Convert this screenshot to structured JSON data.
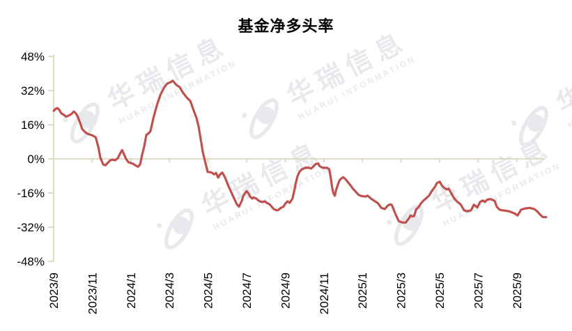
{
  "page": {
    "background": "#FFFFFF"
  },
  "chart_data": {
    "type": "line",
    "title": "基金净多头率",
    "series_name": "基金净多头率",
    "unit": "%",
    "legend_position": "none",
    "grid": "zero-line-only",
    "line_color": "#C0504D",
    "axis_color": "#D9D2B6",
    "label_color": "#000000",
    "x_axis": {
      "tick_labels": [
        "2023/9",
        "2023/11",
        "2024/1",
        "2024/3",
        "2024/5",
        "2024/7",
        "2024/9",
        "2024/11",
        "2025/1",
        "2025/3",
        "2025/5",
        "2025/7",
        "2025/9"
      ],
      "tick_years_decimal": [
        2023.6667,
        2023.8333,
        2024.0,
        2024.1667,
        2024.3333,
        2024.5,
        2024.6667,
        2024.8333,
        2025.0,
        2025.1667,
        2025.3333,
        2025.5,
        2025.6667
      ],
      "start_year_decimal": 2023.6667,
      "end_year_decimal": 2025.8,
      "tick_interval_months": 2,
      "label_rotation_deg": -90
    },
    "y_axis": {
      "tick_labels": [
        "48%",
        "32%",
        "16%",
        "0%",
        "-16%",
        "-32%",
        "-48%"
      ],
      "tick_values": [
        48,
        32,
        16,
        0,
        -16,
        -32,
        -48
      ],
      "min": -48,
      "max": 48
    },
    "points": [
      [
        2023.667,
        22.5
      ],
      [
        2023.676,
        23.5
      ],
      [
        2023.682,
        23.8
      ],
      [
        2023.691,
        23.0
      ],
      [
        2023.7,
        21.3
      ],
      [
        2023.712,
        20.5
      ],
      [
        2023.721,
        19.8
      ],
      [
        2023.73,
        20.2
      ],
      [
        2023.742,
        20.9
      ],
      [
        2023.754,
        22.2
      ],
      [
        2023.763,
        21.3
      ],
      [
        2023.772,
        19.5
      ],
      [
        2023.784,
        15.9
      ],
      [
        2023.79,
        14.0
      ],
      [
        2023.802,
        12.6
      ],
      [
        2023.811,
        11.9
      ],
      [
        2023.82,
        11.5
      ],
      [
        2023.832,
        11.1
      ],
      [
        2023.848,
        10.2
      ],
      [
        2023.86,
        5.3
      ],
      [
        2023.869,
        0.4
      ],
      [
        2023.881,
        -2.6
      ],
      [
        2023.89,
        -3.0
      ],
      [
        2023.899,
        -2.0
      ],
      [
        2023.911,
        -0.7
      ],
      [
        2023.92,
        -0.4
      ],
      [
        2023.932,
        -0.7
      ],
      [
        2023.944,
        0.4
      ],
      [
        2023.953,
        2.4
      ],
      [
        2023.962,
        4.1
      ],
      [
        2023.971,
        2.1
      ],
      [
        2023.98,
        -0.1
      ],
      [
        2023.989,
        -1.5
      ],
      [
        2024.001,
        -2.0
      ],
      [
        2024.01,
        -2.3
      ],
      [
        2024.019,
        -3.0
      ],
      [
        2024.031,
        -3.7
      ],
      [
        2024.04,
        -2.6
      ],
      [
        2024.049,
        2.1
      ],
      [
        2024.058,
        6.0
      ],
      [
        2024.067,
        11.3
      ],
      [
        2024.076,
        11.9
      ],
      [
        2024.085,
        13.0
      ],
      [
        2024.097,
        18.9
      ],
      [
        2024.112,
        24.9
      ],
      [
        2024.127,
        29.8
      ],
      [
        2024.142,
        33.1
      ],
      [
        2024.157,
        35.3
      ],
      [
        2024.169,
        35.8
      ],
      [
        2024.181,
        36.6
      ],
      [
        2024.196,
        34.7
      ],
      [
        2024.211,
        33.6
      ],
      [
        2024.226,
        30.9
      ],
      [
        2024.242,
        28.7
      ],
      [
        2024.257,
        27.1
      ],
      [
        2024.272,
        22.5
      ],
      [
        2024.284,
        19.0
      ],
      [
        2024.293,
        15.0
      ],
      [
        2024.302,
        9.0
      ],
      [
        2024.311,
        3.0
      ],
      [
        2024.32,
        -1.0
      ],
      [
        2024.332,
        -6.1
      ],
      [
        2024.347,
        -6.3
      ],
      [
        2024.359,
        -7.2
      ],
      [
        2024.368,
        -6.6
      ],
      [
        2024.377,
        -8.8
      ],
      [
        2024.386,
        -7.2
      ],
      [
        2024.395,
        -6.4
      ],
      [
        2024.407,
        -8.8
      ],
      [
        2024.419,
        -12.1
      ],
      [
        2024.428,
        -14.3
      ],
      [
        2024.437,
        -16.4
      ],
      [
        2024.449,
        -19.2
      ],
      [
        2024.458,
        -21.3
      ],
      [
        2024.467,
        -22.4
      ],
      [
        2024.479,
        -19.7
      ],
      [
        2024.485,
        -17.5
      ],
      [
        2024.494,
        -15.9
      ],
      [
        2024.5,
        -15.1
      ],
      [
        2024.509,
        -16.4
      ],
      [
        2024.515,
        -17.7
      ],
      [
        2024.524,
        -18.6
      ],
      [
        2024.53,
        -18.1
      ],
      [
        2024.539,
        -18.4
      ],
      [
        2024.548,
        -19.2
      ],
      [
        2024.557,
        -19.9
      ],
      [
        2024.569,
        -20.2
      ],
      [
        2024.578,
        -19.9
      ],
      [
        2024.587,
        -20.6
      ],
      [
        2024.599,
        -21.3
      ],
      [
        2024.608,
        -22.4
      ],
      [
        2024.617,
        -23.5
      ],
      [
        2024.629,
        -24.1
      ],
      [
        2024.638,
        -23.9
      ],
      [
        2024.647,
        -23.0
      ],
      [
        2024.659,
        -22.4
      ],
      [
        2024.668,
        -20.8
      ],
      [
        2024.677,
        -19.9
      ],
      [
        2024.686,
        -20.6
      ],
      [
        2024.698,
        -18.6
      ],
      [
        2024.707,
        -14.3
      ],
      [
        2024.713,
        -11.0
      ],
      [
        2024.719,
        -8.3
      ],
      [
        2024.728,
        -6.1
      ],
      [
        2024.737,
        -5.0
      ],
      [
        2024.752,
        -4.2
      ],
      [
        2024.767,
        -4.1
      ],
      [
        2024.779,
        -4.5
      ],
      [
        2024.788,
        -3.6
      ],
      [
        2024.797,
        -2.5
      ],
      [
        2024.809,
        -2.1
      ],
      [
        2024.815,
        -3.4
      ],
      [
        2024.827,
        -4.1
      ],
      [
        2024.839,
        -4.2
      ],
      [
        2024.848,
        -4.2
      ],
      [
        2024.857,
        -5.0
      ],
      [
        2024.863,
        -8.8
      ],
      [
        2024.869,
        -13.2
      ],
      [
        2024.875,
        -16.2
      ],
      [
        2024.881,
        -17.3
      ],
      [
        2024.887,
        -14.3
      ],
      [
        2024.896,
        -11.5
      ],
      [
        2024.902,
        -9.9
      ],
      [
        2024.911,
        -9.0
      ],
      [
        2024.917,
        -8.6
      ],
      [
        2024.926,
        -9.4
      ],
      [
        2024.938,
        -11.0
      ],
      [
        2024.95,
        -12.6
      ],
      [
        2024.959,
        -14.0
      ],
      [
        2024.971,
        -15.3
      ],
      [
        2024.983,
        -16.8
      ],
      [
        2024.992,
        -17.3
      ],
      [
        2025.004,
        -17.5
      ],
      [
        2025.013,
        -17.7
      ],
      [
        2025.022,
        -17.2
      ],
      [
        2025.037,
        -18.6
      ],
      [
        2025.052,
        -19.7
      ],
      [
        2025.067,
        -20.8
      ],
      [
        2025.082,
        -23.0
      ],
      [
        2025.097,
        -23.5
      ],
      [
        2025.109,
        -21.9
      ],
      [
        2025.121,
        -21.3
      ],
      [
        2025.127,
        -21.6
      ],
      [
        2025.142,
        -25.7
      ],
      [
        2025.157,
        -29.2
      ],
      [
        2025.172,
        -29.8
      ],
      [
        2025.187,
        -29.8
      ],
      [
        2025.202,
        -27.7
      ],
      [
        2025.208,
        -26.5
      ],
      [
        2025.217,
        -27.0
      ],
      [
        2025.223,
        -26.8
      ],
      [
        2025.232,
        -23.7
      ],
      [
        2025.244,
        -22.4
      ],
      [
        2025.253,
        -20.8
      ],
      [
        2025.262,
        -19.7
      ],
      [
        2025.277,
        -18.3
      ],
      [
        2025.289,
        -17.0
      ],
      [
        2025.298,
        -15.3
      ],
      [
        2025.313,
        -13.2
      ],
      [
        2025.322,
        -11.3
      ],
      [
        2025.334,
        -10.7
      ],
      [
        2025.343,
        -12.4
      ],
      [
        2025.352,
        -13.5
      ],
      [
        2025.364,
        -14.3
      ],
      [
        2025.373,
        -14.0
      ],
      [
        2025.388,
        -17.0
      ],
      [
        2025.397,
        -18.6
      ],
      [
        2025.409,
        -20.0
      ],
      [
        2025.424,
        -21.3
      ],
      [
        2025.439,
        -24.1
      ],
      [
        2025.454,
        -24.6
      ],
      [
        2025.469,
        -24.1
      ],
      [
        2025.481,
        -21.5
      ],
      [
        2025.496,
        -22.8
      ],
      [
        2025.508,
        -20.2
      ],
      [
        2025.52,
        -19.5
      ],
      [
        2025.529,
        -20.2
      ],
      [
        2025.538,
        -19.2
      ],
      [
        2025.55,
        -18.8
      ],
      [
        2025.562,
        -19.2
      ],
      [
        2025.571,
        -19.7
      ],
      [
        2025.58,
        -22.4
      ],
      [
        2025.592,
        -23.8
      ],
      [
        2025.604,
        -24.1
      ],
      [
        2025.619,
        -24.3
      ],
      [
        2025.634,
        -24.6
      ],
      [
        2025.649,
        -25.2
      ],
      [
        2025.661,
        -25.8
      ],
      [
        2025.67,
        -26.5
      ],
      [
        2025.685,
        -23.8
      ],
      [
        2025.703,
        -23.2
      ],
      [
        2025.724,
        -23.0
      ],
      [
        2025.742,
        -23.5
      ],
      [
        2025.754,
        -24.5
      ],
      [
        2025.766,
        -26.0
      ],
      [
        2025.778,
        -27.2
      ],
      [
        2025.793,
        -27.3
      ]
    ]
  },
  "watermark": {
    "text_cn": "华瑞信息",
    "text_en": "HUARUI INFORMATION",
    "color": "#E8E9ED"
  }
}
